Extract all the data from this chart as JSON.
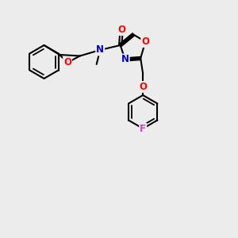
{
  "background_color": "#ececec",
  "bond_color": "#000000",
  "atom_colors": {
    "O": "#ff0000",
    "N": "#0000cc",
    "F": "#cc44cc",
    "C": "#000000"
  },
  "font_size_atoms": 8.5,
  "figure_size": [
    3.0,
    3.0
  ],
  "dpi": 100
}
